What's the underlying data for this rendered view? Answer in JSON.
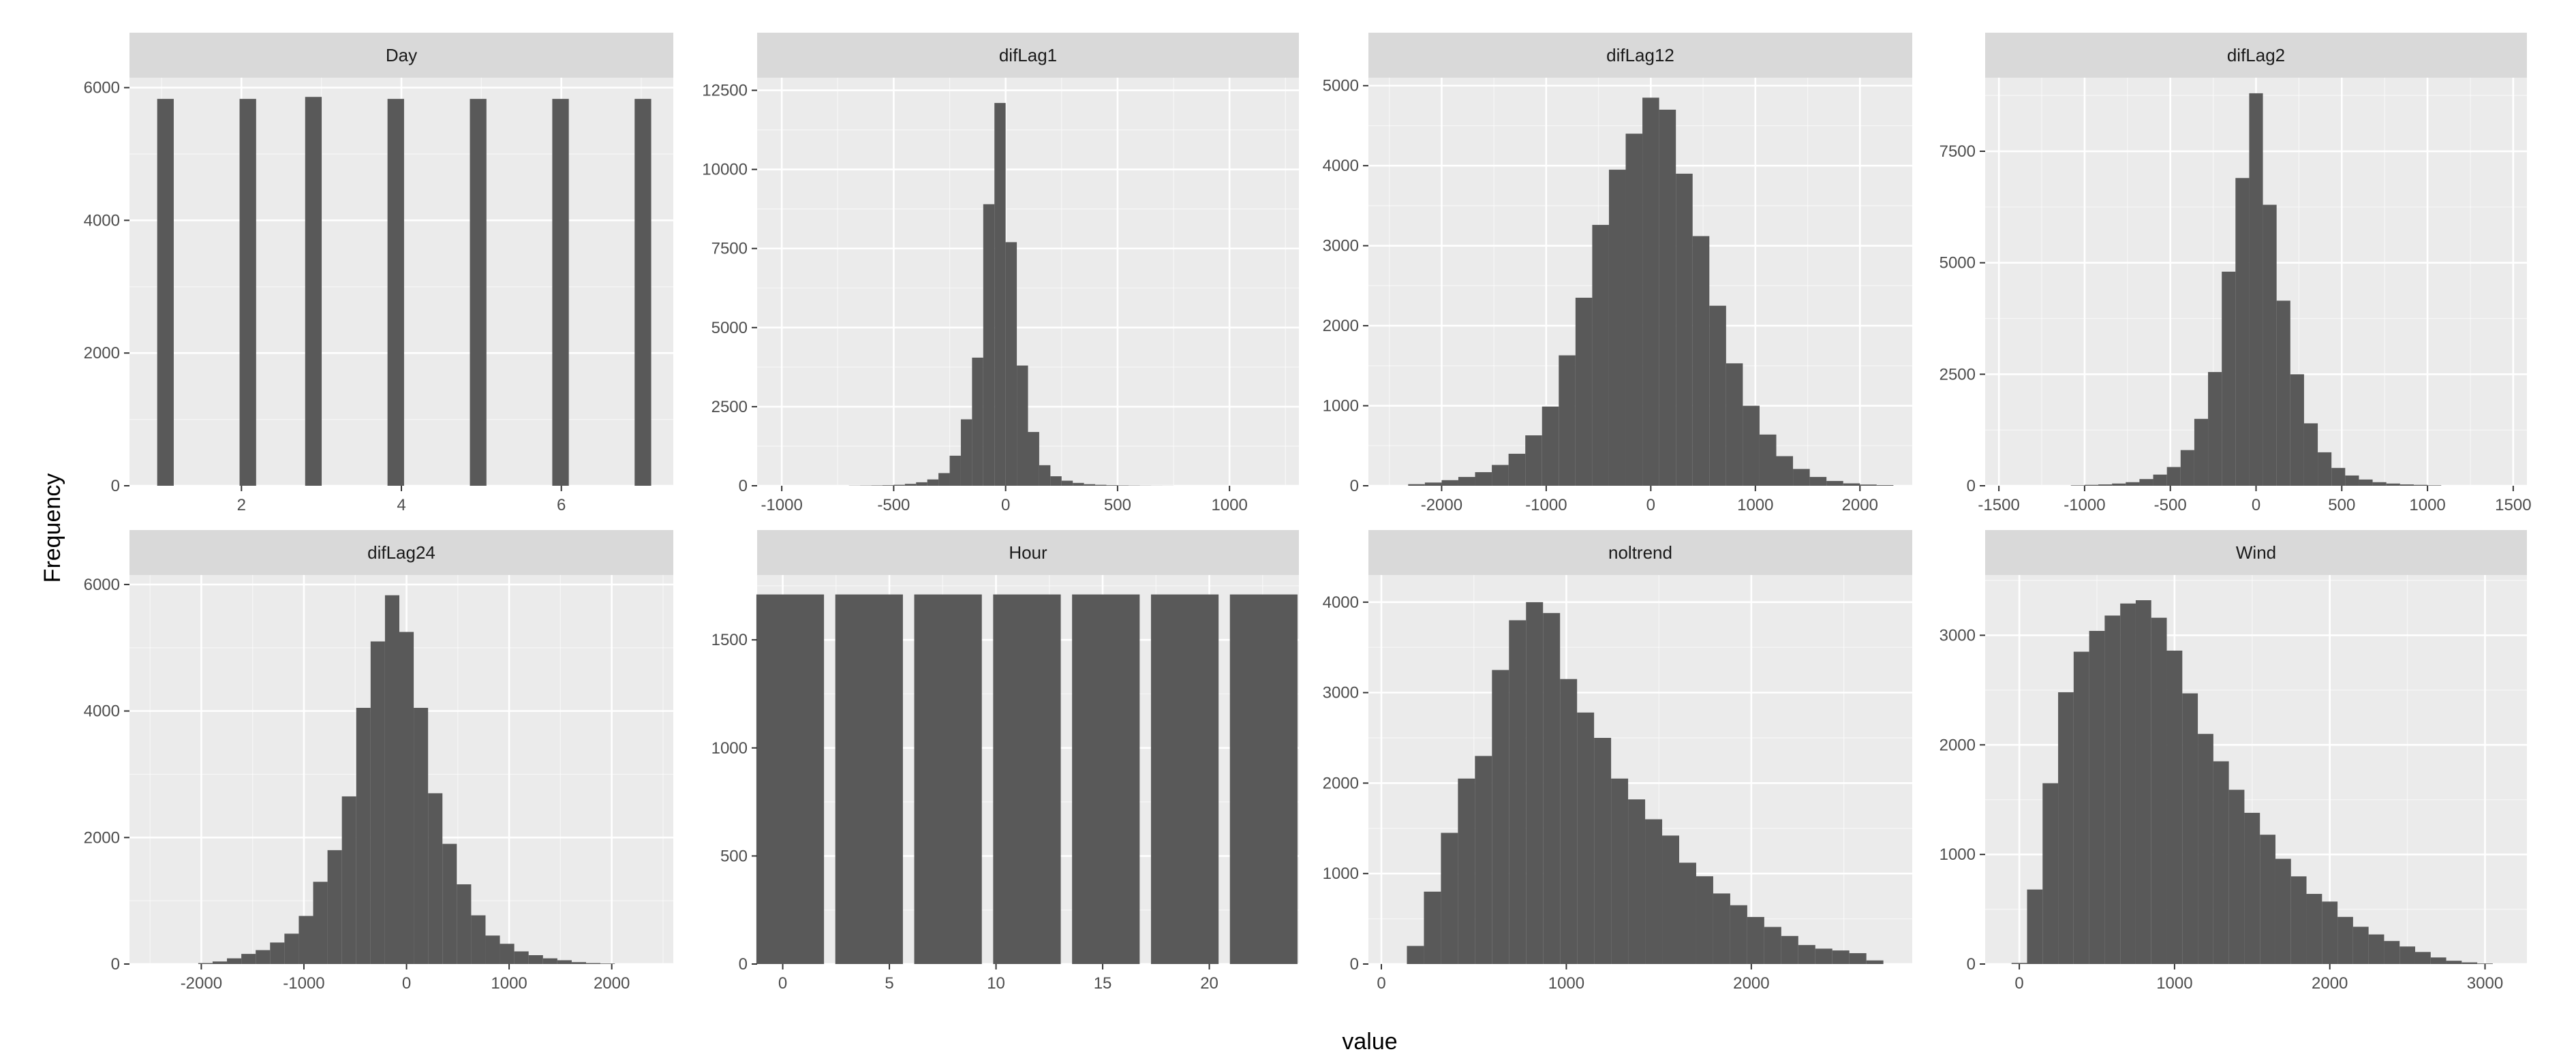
{
  "colors": {
    "panel_bg": "#EBEBEB",
    "strip_bg": "#D9D9D9",
    "grid_major": "#FFFFFF",
    "bar_fill": "#595959",
    "tick_text": "#4D4D4D"
  },
  "chart_data": {
    "type": "bar",
    "facet_type": "histogram",
    "xlabel": "value",
    "ylabel": "Frequency",
    "ncol": 4,
    "panels": [
      {
        "title": "Day",
        "xlim": [
          0.6,
          7.4
        ],
        "ylim": [
          0,
          6150
        ],
        "xticks": [
          2,
          4,
          6
        ],
        "xtick_labels": [
          "2",
          "4",
          "6"
        ],
        "yticks": [
          0,
          2000,
          4000,
          6000
        ],
        "ytick_labels": [
          "0",
          "2000",
          "4000",
          "6000"
        ],
        "bin_width": 0.207,
        "bin_centers": [
          1.05,
          2.08,
          2.9,
          3.93,
          4.96,
          5.99,
          7.02
        ],
        "values": [
          5830,
          5830,
          5860,
          5830,
          5830,
          5830,
          5830
        ]
      },
      {
        "title": "difLag1",
        "xlim": [
          -1110,
          1310
        ],
        "ylim": [
          0,
          12900
        ],
        "xticks": [
          -1000,
          -500,
          0,
          500,
          1000
        ],
        "xtick_labels": [
          "-1000",
          "-500",
          "0",
          "500",
          "1000"
        ],
        "yticks": [
          0,
          2500,
          5000,
          7500,
          10000,
          12500
        ],
        "ytick_labels": [
          "0",
          "2500",
          "5000",
          "7500",
          "10000",
          "12500"
        ],
        "bin_width": 50,
        "bin_centers": [
          -675,
          -625,
          -575,
          -525,
          -475,
          -425,
          -375,
          -325,
          -275,
          -225,
          -175,
          -125,
          -75,
          -25,
          25,
          75,
          125,
          175,
          225,
          275,
          325,
          375,
          425,
          475,
          525,
          575,
          625,
          675,
          725
        ],
        "values": [
          5,
          8,
          12,
          18,
          30,
          60,
          110,
          200,
          400,
          950,
          2100,
          4050,
          8900,
          12100,
          7700,
          3800,
          1700,
          650,
          300,
          160,
          90,
          50,
          30,
          18,
          12,
          8,
          5,
          3,
          2
        ]
      },
      {
        "title": "difLag12",
        "xlim": [
          -2700,
          2500
        ],
        "ylim": [
          0,
          5100
        ],
        "xticks": [
          -2000,
          -1000,
          0,
          1000,
          2000
        ],
        "xtick_labels": [
          "-2000",
          "-1000",
          "0",
          "1000",
          "2000"
        ],
        "yticks": [
          0,
          1000,
          2000,
          3000,
          4000,
          5000
        ],
        "ytick_labels": [
          "0",
          "1000",
          "2000",
          "3000",
          "4000",
          "5000"
        ],
        "bin_width": 160,
        "bin_centers": [
          -2240,
          -2080,
          -1920,
          -1760,
          -1600,
          -1440,
          -1280,
          -1120,
          -960,
          -800,
          -640,
          -480,
          -320,
          -160,
          0,
          160,
          320,
          480,
          640,
          800,
          960,
          1120,
          1280,
          1440,
          1600,
          1760,
          1920,
          2080,
          2240
        ],
        "values": [
          20,
          40,
          70,
          110,
          170,
          260,
          400,
          630,
          990,
          1630,
          2350,
          3260,
          3950,
          4400,
          4850,
          4700,
          3900,
          3120,
          2250,
          1530,
          1000,
          640,
          370,
          210,
          110,
          60,
          30,
          15,
          8
        ]
      },
      {
        "title": "difLag2",
        "xlim": [
          -1580,
          1580
        ],
        "ylim": [
          0,
          9150
        ],
        "xticks": [
          -1500,
          -1000,
          -500,
          0,
          500,
          1000,
          1500
        ],
        "xtick_labels": [
          "-1500",
          "-1000",
          "-500",
          "0",
          "500",
          "1000",
          "1500"
        ],
        "yticks": [
          0,
          2500,
          5000,
          7500
        ],
        "ytick_labels": [
          "0",
          "2500",
          "5000",
          "7500"
        ],
        "bin_width": 80,
        "bin_centers": [
          -1040,
          -960,
          -880,
          -800,
          -720,
          -640,
          -560,
          -480,
          -400,
          -320,
          -240,
          -160,
          -80,
          0,
          80,
          160,
          240,
          320,
          400,
          480,
          560,
          640,
          720,
          800,
          880,
          960,
          1040
        ],
        "values": [
          10,
          20,
          30,
          50,
          80,
          150,
          250,
          420,
          800,
          1500,
          2550,
          4800,
          6900,
          8800,
          6300,
          4150,
          2500,
          1400,
          750,
          400,
          230,
          140,
          80,
          50,
          30,
          20,
          10
        ]
      },
      {
        "title": "difLag24",
        "xlim": [
          -2700,
          2600
        ],
        "ylim": [
          0,
          6150
        ],
        "xticks": [
          -2000,
          -1000,
          0,
          1000,
          2000
        ],
        "xtick_labels": [
          "-2000",
          "-1000",
          "0",
          "1000",
          "2000"
        ],
        "yticks": [
          0,
          2000,
          4000,
          6000
        ],
        "ytick_labels": [
          "0",
          "2000",
          "4000",
          "6000"
        ],
        "bin_width": 140,
        "bin_centers": [
          -1960,
          -1820,
          -1680,
          -1540,
          -1400,
          -1260,
          -1120,
          -980,
          -840,
          -700,
          -560,
          -420,
          -280,
          -140,
          0,
          140,
          280,
          420,
          560,
          700,
          840,
          980,
          1120,
          1260,
          1400,
          1540,
          1680,
          1820,
          1960
        ],
        "values": [
          15,
          40,
          90,
          160,
          220,
          340,
          480,
          760,
          1300,
          1800,
          2650,
          4050,
          5100,
          5830,
          5250,
          4050,
          2700,
          1900,
          1260,
          770,
          450,
          320,
          200,
          140,
          90,
          60,
          30,
          15,
          8
        ]
      },
      {
        "title": "Hour",
        "xlim": [
          -1.2,
          24.2
        ],
        "ylim": [
          0,
          1800
        ],
        "xticks": [
          0,
          5,
          10,
          15,
          20
        ],
        "xtick_labels": [
          "0",
          "5",
          "10",
          "15",
          "20"
        ],
        "yticks": [
          0,
          500,
          1000,
          1500
        ],
        "ytick_labels": [
          "0",
          "500",
          "1000",
          "1500"
        ],
        "bin_width": 3.17,
        "bin_centers": [
          0.35,
          4.05,
          7.75,
          11.45,
          15.15,
          18.85,
          22.55
        ],
        "values": [
          1710,
          1710,
          1710,
          1710,
          1710,
          1710,
          1710
        ]
      },
      {
        "title": "noltrend",
        "xlim": [
          -70,
          2870
        ],
        "ylim": [
          0,
          4300
        ],
        "xticks": [
          0,
          1000,
          2000
        ],
        "xtick_labels": [
          "0",
          "1000",
          "2000"
        ],
        "yticks": [
          0,
          1000,
          2000,
          3000,
          4000
        ],
        "ytick_labels": [
          "0",
          "1000",
          "2000",
          "3000",
          "4000"
        ],
        "bin_width": 92,
        "bin_centers": [
          184,
          276,
          368,
          460,
          552,
          644,
          736,
          828,
          920,
          1012,
          1104,
          1196,
          1288,
          1380,
          1472,
          1564,
          1656,
          1748,
          1840,
          1932,
          2024,
          2116,
          2208,
          2300,
          2392,
          2484,
          2576,
          2668
        ],
        "values": [
          200,
          800,
          1450,
          2050,
          2300,
          3250,
          3800,
          4000,
          3880,
          3150,
          2780,
          2500,
          2050,
          1820,
          1600,
          1420,
          1120,
          970,
          780,
          650,
          520,
          410,
          310,
          210,
          170,
          150,
          120,
          40
        ]
      },
      {
        "title": "Wind",
        "xlim": [
          -220,
          3270
        ],
        "ylim": [
          0,
          3550
        ],
        "xticks": [
          0,
          1000,
          2000,
          3000
        ],
        "xtick_labels": [
          "0",
          "1000",
          "2000",
          "3000"
        ],
        "yticks": [
          0,
          1000,
          2000,
          3000
        ],
        "ytick_labels": [
          "0",
          "1000",
          "2000",
          "3000"
        ],
        "bin_width": 100,
        "bin_centers": [
          0,
          100,
          200,
          300,
          400,
          500,
          600,
          700,
          800,
          900,
          1000,
          1100,
          1200,
          1300,
          1400,
          1500,
          1600,
          1700,
          1800,
          1900,
          2000,
          2100,
          2200,
          2300,
          2400,
          2500,
          2600,
          2700,
          2800,
          2900,
          3000
        ],
        "values": [
          10,
          680,
          1650,
          2480,
          2850,
          3040,
          3180,
          3290,
          3320,
          3160,
          2860,
          2470,
          2100,
          1850,
          1590,
          1380,
          1180,
          960,
          800,
          640,
          570,
          430,
          340,
          270,
          210,
          160,
          110,
          60,
          30,
          15,
          5
        ]
      }
    ]
  }
}
